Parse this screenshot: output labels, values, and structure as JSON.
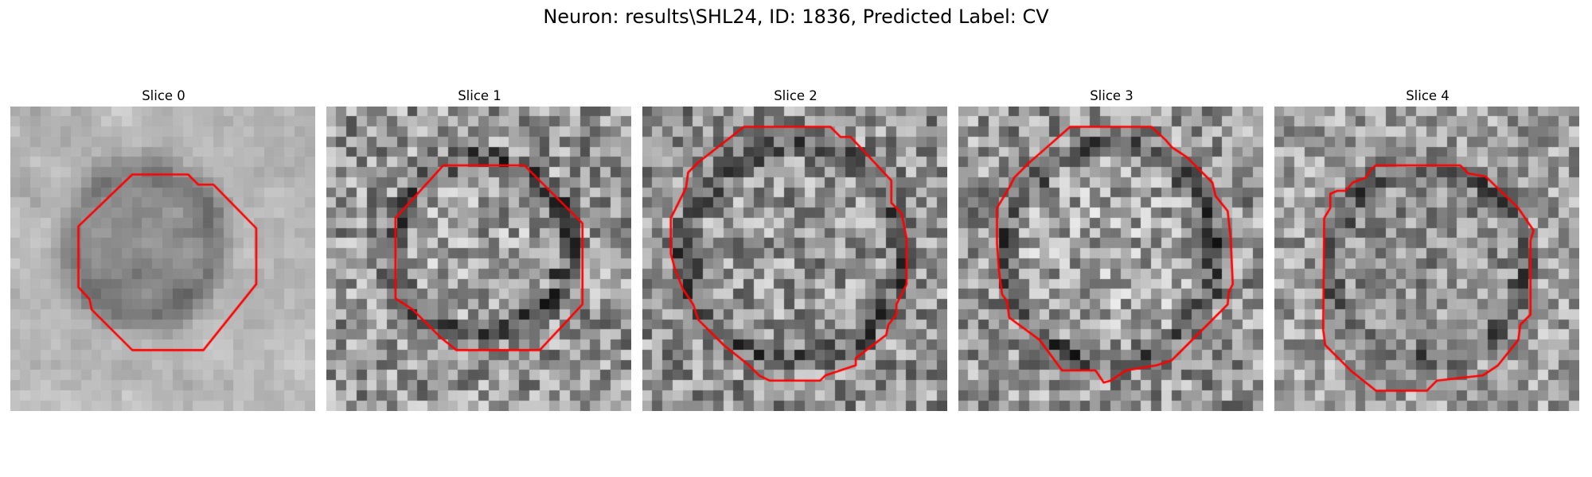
{
  "figure": {
    "title": "Neuron: results\\SHL24, ID: 1836, Predicted Label: CV"
  },
  "contour_color": "#ff0000",
  "colormap": "grayscale",
  "grid_size": 30,
  "slices": [
    {
      "title": "Slice 0"
    },
    {
      "title": "Slice 1"
    },
    {
      "title": "Slice 2"
    },
    {
      "title": "Slice 3"
    },
    {
      "title": "Slice 4"
    }
  ]
}
